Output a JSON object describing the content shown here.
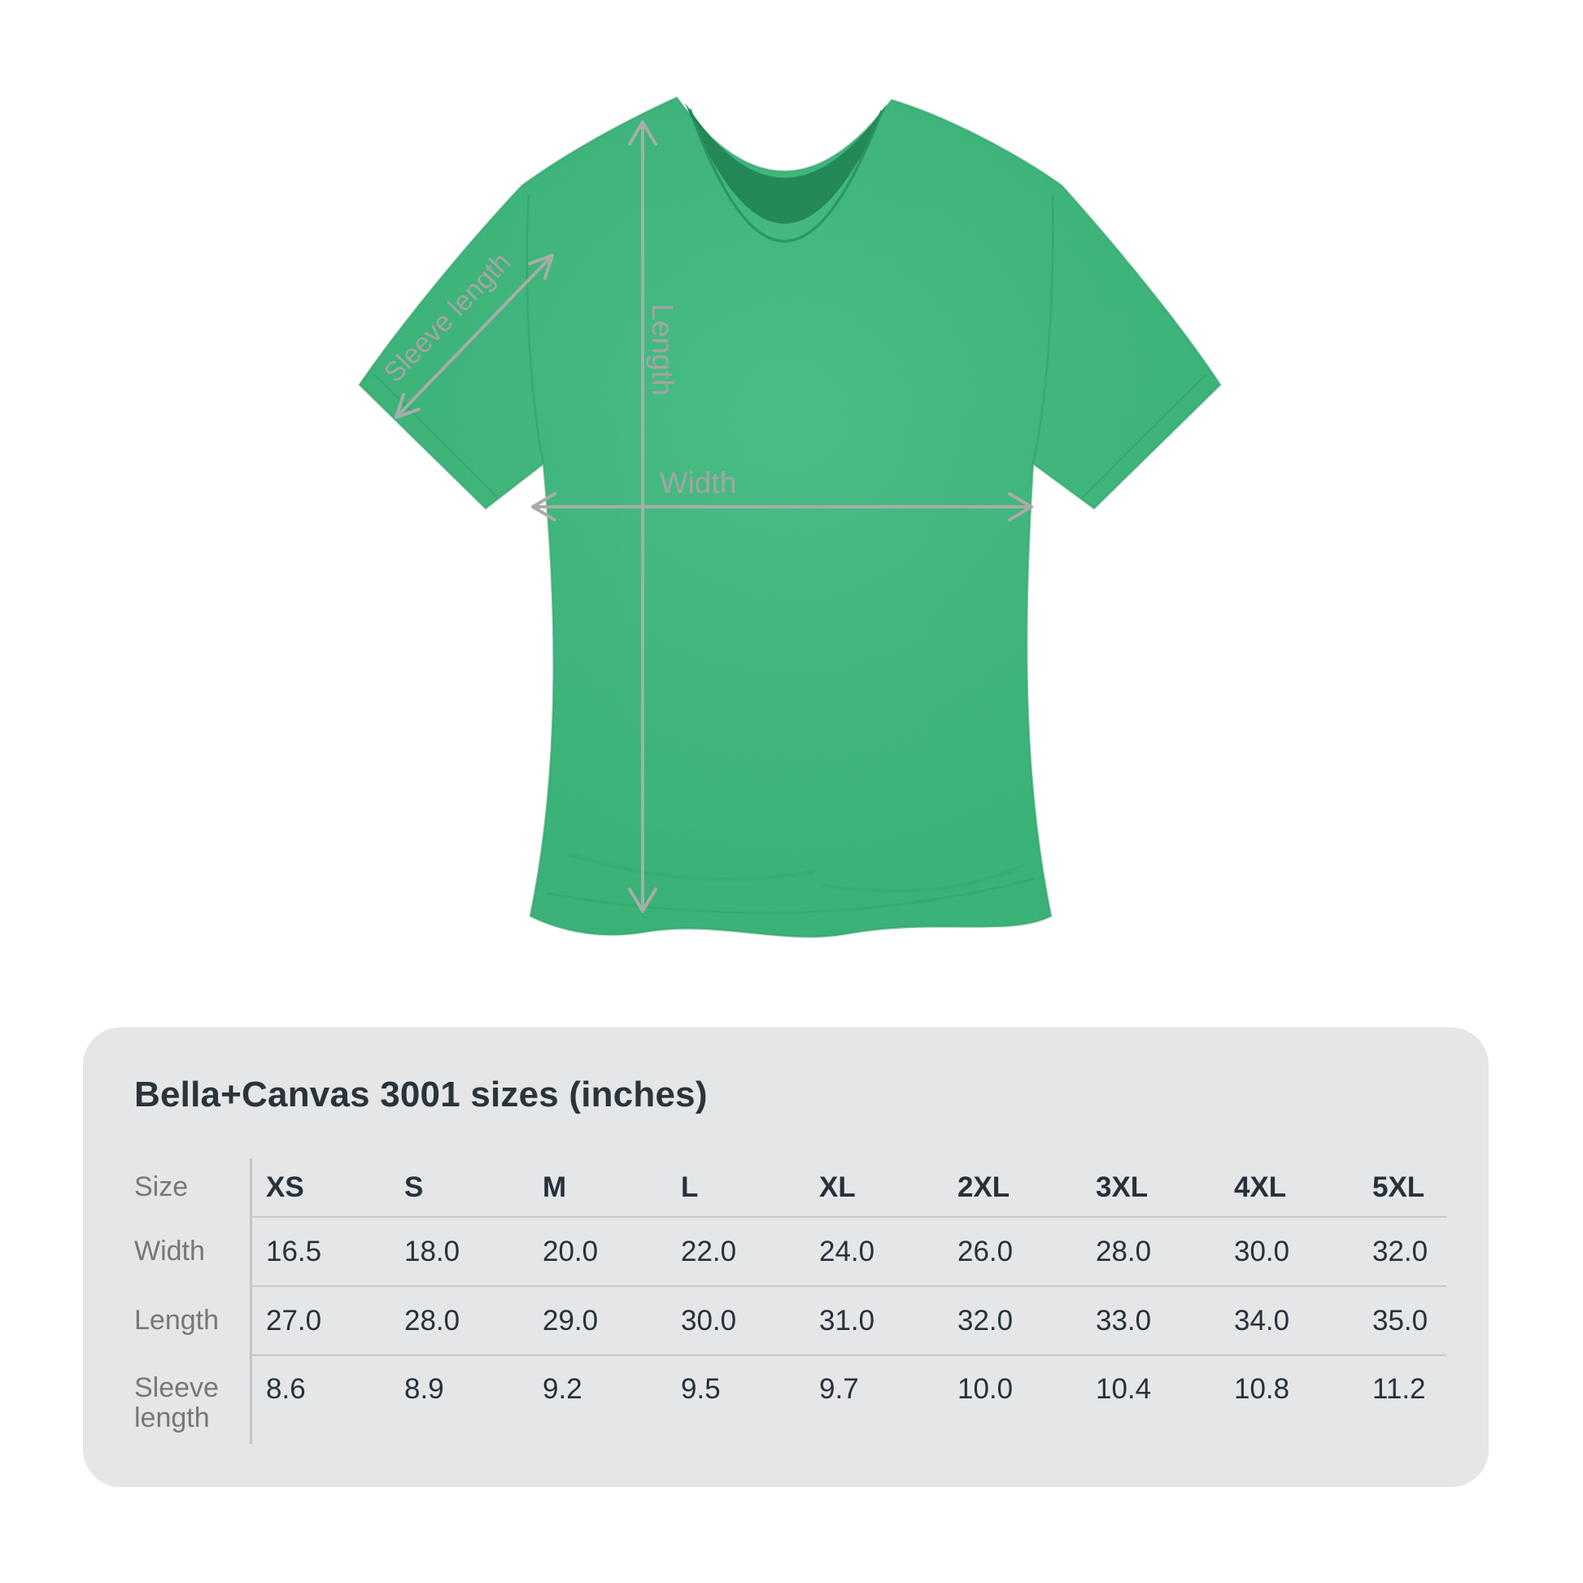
{
  "diagram": {
    "labels": {
      "sleeve": "Sleeve length",
      "length": "Length",
      "width": "Width"
    },
    "colors": {
      "fabric": "#2fb473",
      "fabric_shadow": "#1e9158",
      "collar_inner": "#16814c",
      "measure_gray": "#a6a8a7",
      "panel_background": "#e4e6e8"
    }
  },
  "panel": {
    "title": "Bella+Canvas 3001 sizes (inches)",
    "table": {
      "corner_label": "Size",
      "columns": [
        "XS",
        "S",
        "M",
        "L",
        "XL",
        "2XL",
        "3XL",
        "4XL",
        "5XL"
      ],
      "rows": [
        {
          "label": "Width",
          "values": [
            "16.5",
            "18.0",
            "20.0",
            "22.0",
            "24.0",
            "26.0",
            "28.0",
            "30.0",
            "32.0"
          ]
        },
        {
          "label": "Length",
          "values": [
            "27.0",
            "28.0",
            "29.0",
            "30.0",
            "31.0",
            "32.0",
            "33.0",
            "34.0",
            "35.0"
          ]
        },
        {
          "label": "Sleeve length",
          "values": [
            "8.6",
            "8.9",
            "9.2",
            "9.5",
            "9.7",
            "10.0",
            "10.4",
            "10.8",
            "11.2"
          ]
        }
      ]
    }
  }
}
